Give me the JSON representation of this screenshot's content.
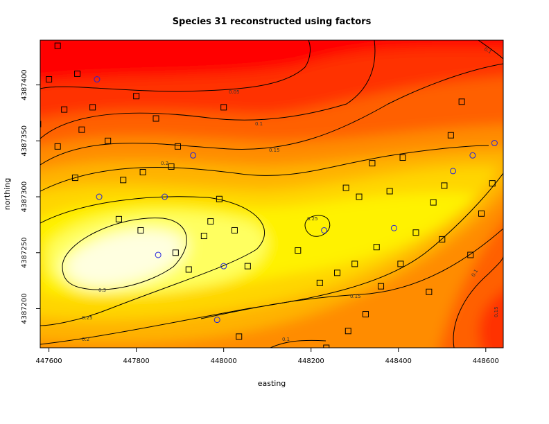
{
  "chart_data": {
    "type": "heatmap",
    "title": "Species 31 reconstructed using factors",
    "xlabel": "easting",
    "ylabel": "northing",
    "xlim": [
      447580,
      448640
    ],
    "ylim": [
      4387165,
      4387440
    ],
    "x_ticks": [
      447600,
      447800,
      448000,
      448200,
      448400,
      448600
    ],
    "y_ticks": [
      4387200,
      4387250,
      4387300,
      4387350,
      4387400
    ],
    "color_scale": [
      "#ff0000",
      "#ff2a00",
      "#ff5200",
      "#ff7a00",
      "#ffa000",
      "#ffc500",
      "#ffe800",
      "#ffff3a",
      "#ffff9a",
      "#ffffe0"
    ],
    "contour_levels": [
      0.05,
      0.1,
      0.15,
      0.2,
      0.25,
      0.3
    ],
    "contour_labels": [
      "0.05",
      "0.1",
      "0.15",
      "0.2",
      "0.25",
      "0.3",
      "0.1",
      "0.15",
      "0.2",
      "0.25",
      "0.1",
      "0.1",
      "0.15"
    ],
    "series": [
      {
        "marker": "square",
        "x": [
          447620,
          447665,
          447600,
          447575,
          447635,
          447620,
          447660,
          447675,
          447700,
          447735,
          447760,
          447810,
          447770,
          447800,
          447815,
          447845,
          447880,
          447890,
          447895,
          447920,
          447955,
          447970,
          447990,
          448000,
          448025,
          448035,
          448055,
          448170,
          448220,
          448235,
          448260,
          448280,
          448285,
          448300,
          448310,
          448325,
          448340,
          448350,
          448360,
          448380,
          448405,
          448410,
          448440,
          448470,
          448480,
          448500,
          448505,
          448520,
          448545,
          448565,
          448590,
          448615
        ],
        "y": [
          4387435,
          4387410,
          4387405,
          4387365,
          4387378,
          4387345,
          4387317,
          4387360,
          4387380,
          4387350,
          4387280,
          4387270,
          4387315,
          4387390,
          4387322,
          4387370,
          4387327,
          4387250,
          4387345,
          4387235,
          4387265,
          4387278,
          4387298,
          4387380,
          4387270,
          4387175,
          4387238,
          4387252,
          4387223,
          4387165,
          4387232,
          4387308,
          4387180,
          4387240,
          4387300,
          4387195,
          4387330,
          4387255,
          4387220,
          4387305,
          4387240,
          4387335,
          4387268,
          4387215,
          4387295,
          4387262,
          4387310,
          4387355,
          4387385,
          4387248,
          4387285,
          4387312
        ]
      },
      {
        "marker": "circle",
        "x": [
          447710,
          447715,
          447850,
          447865,
          447930,
          447985,
          448000,
          448230,
          448390,
          448525,
          448570,
          448620
        ],
        "y": [
          4387405,
          4387300,
          4387248,
          4387300,
          4387337,
          4387190,
          4387238,
          4387270,
          4387272,
          4387323,
          4387337,
          4387348
        ]
      }
    ]
  }
}
